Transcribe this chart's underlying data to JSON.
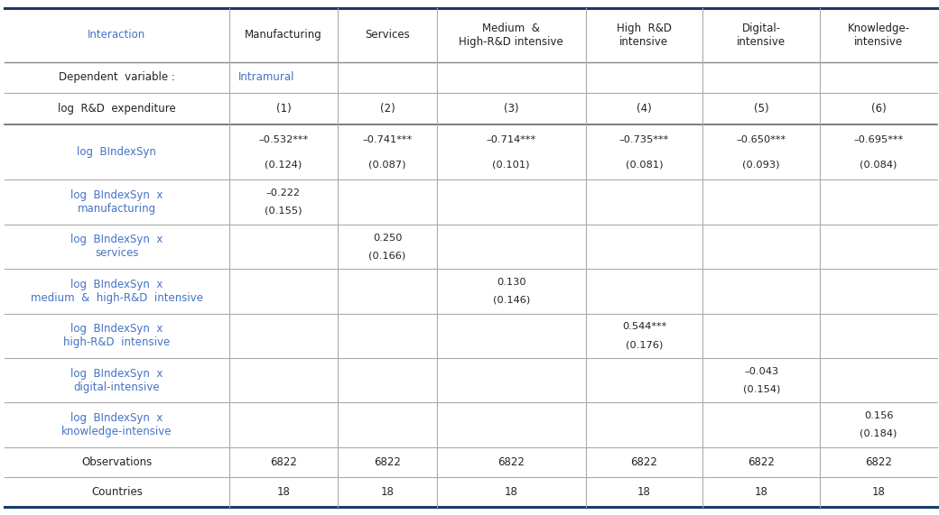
{
  "col_headers": [
    "Interaction",
    "Manufacturing",
    "Services",
    "Medium  &\nHigh-R&D intensive",
    "High  R&D\nintensive",
    "Digital-\nintensive",
    "Knowledge-\nintensive"
  ],
  "dep_var_label": "Dependent  variable :",
  "dep_var_value": "Intramural",
  "rd_exp_label": "log  R&D  expenditure",
  "rd_exp_cols": [
    "(1)",
    "(2)",
    "(3)",
    "(4)",
    "(5)",
    "(6)"
  ],
  "rows": [
    {
      "label": "log  BIndexSyn",
      "values": [
        "–0.532***",
        "–0.741***",
        "–0.714***",
        "–0.735***",
        "–0.650***",
        "–0.695***"
      ],
      "se": [
        "(0.124)",
        "(0.087)",
        "(0.101)",
        "(0.081)",
        "(0.093)",
        "(0.084)"
      ]
    },
    {
      "label": "log  BIndexSyn  x\nmanufacturing",
      "values": [
        "–0.222",
        "",
        "",
        "",
        "",
        ""
      ],
      "se": [
        "(0.155)",
        "",
        "",
        "",
        "",
        ""
      ]
    },
    {
      "label": "log  BIndexSyn  x\nservices",
      "values": [
        "",
        "0.250",
        "",
        "",
        "",
        ""
      ],
      "se": [
        "",
        "(0.166)",
        "",
        "",
        "",
        ""
      ]
    },
    {
      "label": "log  BIndexSyn  x\nmedium  &  high-R&D  intensive",
      "values": [
        "",
        "",
        "0.130",
        "",
        "",
        ""
      ],
      "se": [
        "",
        "",
        "(0.146)",
        "",
        "",
        ""
      ]
    },
    {
      "label": "log  BIndexSyn  x\nhigh-R&D  intensive",
      "values": [
        "",
        "",
        "",
        "0.544***",
        "",
        ""
      ],
      "se": [
        "",
        "",
        "",
        "(0.176)",
        "",
        ""
      ]
    },
    {
      "label": "log  BIndexSyn  x\ndigital-intensive",
      "values": [
        "",
        "",
        "",
        "",
        "–0.043",
        ""
      ],
      "se": [
        "",
        "",
        "",
        "",
        "(0.154)",
        ""
      ]
    },
    {
      "label": "log  BIndexSyn  x\nknowledge-intensive",
      "values": [
        "",
        "",
        "",
        "",
        "",
        "0.156"
      ],
      "se": [
        "",
        "",
        "",
        "",
        "",
        "(0.184)"
      ]
    },
    {
      "label": "Observations",
      "values": [
        "6822",
        "6822",
        "6822",
        "6822",
        "6822",
        "6822"
      ],
      "se": [
        "",
        "",
        "",
        "",
        "",
        ""
      ]
    },
    {
      "label": "Countries",
      "values": [
        "18",
        "18",
        "18",
        "18",
        "18",
        "18"
      ],
      "se": [
        "",
        "",
        "",
        "",
        "",
        ""
      ]
    }
  ],
  "bg_color": "#ffffff",
  "thick_line_color": "#1a3a6b",
  "thin_line_color": "#aaaaaa",
  "black": "#222222",
  "blue": "#4472C4"
}
